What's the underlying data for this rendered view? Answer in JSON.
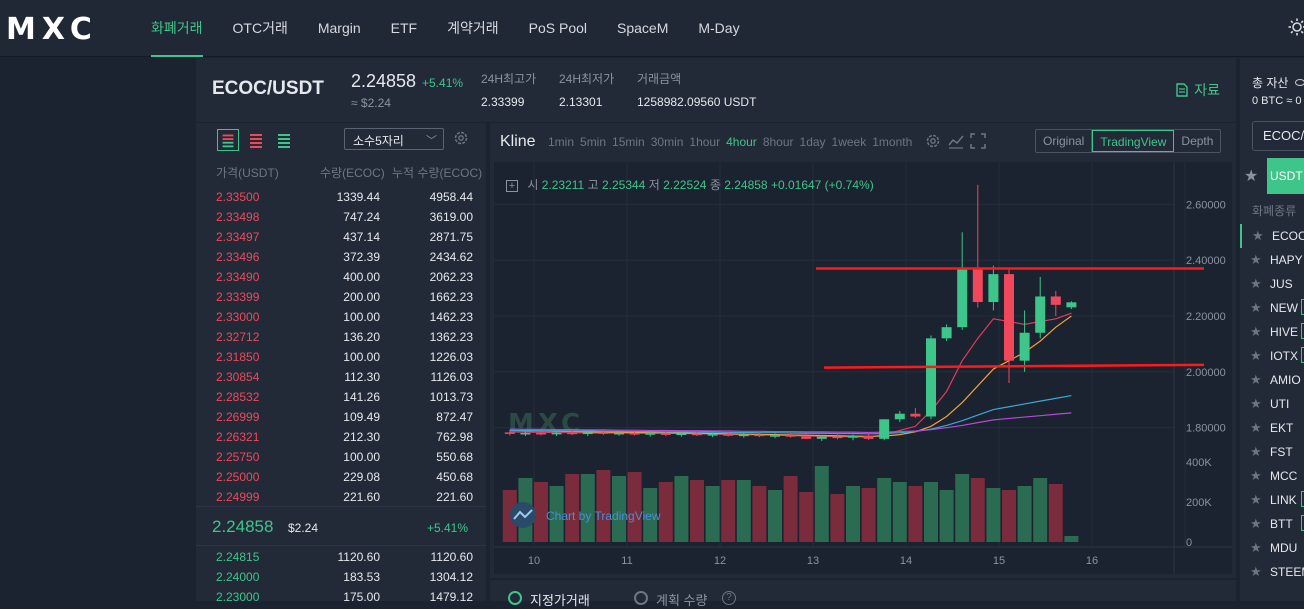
{
  "header": {
    "logo": "MXC",
    "nav": [
      "화폐거래",
      "OTC거래",
      "Margin",
      "ETF",
      "계약거래",
      "PoS Pool",
      "SpaceM",
      "M-Day"
    ]
  },
  "ticker": {
    "pair": "ECOC/USDT",
    "price": "2.24858",
    "change": "+5.41%",
    "usd": "≈ $2.24",
    "stats": [
      {
        "label": "24H최고가",
        "value": "2.33399"
      },
      {
        "label": "24H최저가",
        "value": "2.13301"
      },
      {
        "label": "거래금액",
        "value": "1258982.09560 USDT"
      }
    ],
    "docs_label": "자료"
  },
  "orderbook": {
    "precision": "소수5자리",
    "headers": {
      "price": "가격(USDT)",
      "qty": "수량(ECOC)",
      "cum": "누적 수량(ECOC)"
    },
    "asks": [
      {
        "price": "2.33500",
        "qty": "1339.44",
        "cum": "4958.44"
      },
      {
        "price": "2.33498",
        "qty": "747.24",
        "cum": "3619.00"
      },
      {
        "price": "2.33497",
        "qty": "437.14",
        "cum": "2871.75"
      },
      {
        "price": "2.33496",
        "qty": "372.39",
        "cum": "2434.62"
      },
      {
        "price": "2.33490",
        "qty": "400.00",
        "cum": "2062.23"
      },
      {
        "price": "2.33399",
        "qty": "200.00",
        "cum": "1662.23"
      },
      {
        "price": "2.33000",
        "qty": "100.00",
        "cum": "1462.23"
      },
      {
        "price": "2.32712",
        "qty": "136.20",
        "cum": "1362.23"
      },
      {
        "price": "2.31850",
        "qty": "100.00",
        "cum": "1226.03"
      },
      {
        "price": "2.30854",
        "qty": "112.30",
        "cum": "1126.03"
      },
      {
        "price": "2.28532",
        "qty": "141.26",
        "cum": "1013.73"
      },
      {
        "price": "2.26999",
        "qty": "109.49",
        "cum": "872.47"
      },
      {
        "price": "2.26321",
        "qty": "212.30",
        "cum": "762.98"
      },
      {
        "price": "2.25750",
        "qty": "100.00",
        "cum": "550.68"
      },
      {
        "price": "2.25000",
        "qty": "229.08",
        "cum": "450.68"
      },
      {
        "price": "2.24999",
        "qty": "221.60",
        "cum": "221.60"
      }
    ],
    "mid": {
      "price": "2.24858",
      "usd": "$2.24",
      "change": "+5.41%"
    },
    "bids": [
      {
        "price": "2.24815",
        "qty": "1120.60",
        "cum": "1120.60"
      },
      {
        "price": "2.24000",
        "qty": "183.53",
        "cum": "1304.12"
      },
      {
        "price": "2.23000",
        "qty": "175.00",
        "cum": "1479.12"
      }
    ]
  },
  "kline": {
    "title": "Kline",
    "intervals": [
      "1min",
      "5min",
      "15min",
      "30min",
      "1hour",
      "4hour",
      "8hour",
      "1day",
      "1week",
      "1month"
    ],
    "active_interval": "4hour",
    "views": [
      "Original",
      "TradingView",
      "Depth"
    ],
    "active_view": "TradingView",
    "ohlc": {
      "o_label": "시",
      "o": "2.23211",
      "h_label": "고",
      "h": "2.25344",
      "l_label": "저",
      "l": "2.22524",
      "c_label": "종",
      "c": "2.24858",
      "chg": "+0.01647 (+0.74%)"
    },
    "watermark": "MXC",
    "credit": "Chart by TradingView",
    "bottom_tabs": [
      "지정가거래",
      "계획 수량"
    ]
  },
  "chart_data": {
    "type": "candlestick",
    "x_tick_labels": [
      "10",
      "11",
      "12",
      "13",
      "14",
      "15",
      "16"
    ],
    "y_tick_labels": [
      "2.60000",
      "2.40000",
      "2.20000",
      "2.00000",
      "1.80000"
    ],
    "ylim": [
      1.72,
      2.68
    ],
    "volume_tick_labels": [
      "400K",
      "200K",
      "0"
    ],
    "volume_ylim": [
      0,
      400000
    ],
    "candles": [
      {
        "o": 1.783,
        "h": 1.79,
        "l": 1.772,
        "c": 1.778
      },
      {
        "o": 1.778,
        "h": 1.786,
        "l": 1.77,
        "c": 1.781
      },
      {
        "o": 1.781,
        "h": 1.788,
        "l": 1.772,
        "c": 1.776
      },
      {
        "o": 1.776,
        "h": 1.785,
        "l": 1.77,
        "c": 1.782
      },
      {
        "o": 1.782,
        "h": 1.79,
        "l": 1.773,
        "c": 1.777
      },
      {
        "o": 1.777,
        "h": 1.786,
        "l": 1.77,
        "c": 1.783
      },
      {
        "o": 1.783,
        "h": 1.792,
        "l": 1.774,
        "c": 1.778
      },
      {
        "o": 1.778,
        "h": 1.786,
        "l": 1.771,
        "c": 1.781
      },
      {
        "o": 1.781,
        "h": 1.789,
        "l": 1.772,
        "c": 1.775
      },
      {
        "o": 1.775,
        "h": 1.784,
        "l": 1.768,
        "c": 1.78
      },
      {
        "o": 1.78,
        "h": 1.787,
        "l": 1.77,
        "c": 1.774
      },
      {
        "o": 1.774,
        "h": 1.783,
        "l": 1.768,
        "c": 1.779
      },
      {
        "o": 1.779,
        "h": 1.786,
        "l": 1.77,
        "c": 1.773
      },
      {
        "o": 1.773,
        "h": 1.782,
        "l": 1.766,
        "c": 1.777
      },
      {
        "o": 1.777,
        "h": 1.785,
        "l": 1.768,
        "c": 1.771
      },
      {
        "o": 1.771,
        "h": 1.781,
        "l": 1.764,
        "c": 1.775
      },
      {
        "o": 1.775,
        "h": 1.783,
        "l": 1.766,
        "c": 1.77
      },
      {
        "o": 1.77,
        "h": 1.78,
        "l": 1.762,
        "c": 1.773
      },
      {
        "o": 1.773,
        "h": 1.781,
        "l": 1.764,
        "c": 1.768
      },
      {
        "o": 1.768,
        "h": 1.778,
        "l": 1.76,
        "c": 1.76
      },
      {
        "o": 1.76,
        "h": 1.772,
        "l": 1.752,
        "c": 1.768
      },
      {
        "o": 1.768,
        "h": 1.776,
        "l": 1.758,
        "c": 1.764
      },
      {
        "o": 1.764,
        "h": 1.775,
        "l": 1.755,
        "c": 1.77
      },
      {
        "o": 1.77,
        "h": 1.778,
        "l": 1.756,
        "c": 1.76
      },
      {
        "o": 1.76,
        "h": 1.83,
        "l": 1.755,
        "c": 1.83
      },
      {
        "o": 1.83,
        "h": 1.86,
        "l": 1.82,
        "c": 1.85
      },
      {
        "o": 1.85,
        "h": 1.87,
        "l": 1.835,
        "c": 1.84
      },
      {
        "o": 1.84,
        "h": 2.13,
        "l": 1.83,
        "c": 2.12
      },
      {
        "o": 2.12,
        "h": 2.17,
        "l": 2.11,
        "c": 2.16
      },
      {
        "o": 2.16,
        "h": 2.5,
        "l": 2.15,
        "c": 2.37
      },
      {
        "o": 2.37,
        "h": 2.67,
        "l": 2.23,
        "c": 2.25
      },
      {
        "o": 2.25,
        "h": 2.38,
        "l": 2.22,
        "c": 2.35
      },
      {
        "o": 2.35,
        "h": 2.37,
        "l": 1.96,
        "c": 2.04
      },
      {
        "o": 2.04,
        "h": 2.22,
        "l": 2.0,
        "c": 2.14
      },
      {
        "o": 2.14,
        "h": 2.34,
        "l": 2.12,
        "c": 2.27
      },
      {
        "o": 2.27,
        "h": 2.29,
        "l": 2.2,
        "c": 2.24
      },
      {
        "o": 2.231,
        "h": 2.253,
        "l": 2.225,
        "c": 2.249
      }
    ],
    "volumes": [
      260000,
      320000,
      300000,
      280000,
      340000,
      340000,
      360000,
      330000,
      350000,
      270000,
      300000,
      330000,
      310000,
      280000,
      310000,
      310000,
      280000,
      260000,
      330000,
      250000,
      380000,
      240000,
      280000,
      270000,
      320000,
      300000,
      280000,
      300000,
      260000,
      340000,
      320000,
      270000,
      260000,
      280000,
      320000,
      290000,
      30000
    ],
    "ma_lines": [
      {
        "color": "#e23b5a",
        "values": [
          1.785,
          1.784,
          1.783,
          1.782,
          1.782,
          1.781,
          1.781,
          1.781,
          1.78,
          1.78,
          1.78,
          1.779,
          1.778,
          1.777,
          1.776,
          1.775,
          1.774,
          1.773,
          1.772,
          1.77,
          1.769,
          1.768,
          1.768,
          1.766,
          1.775,
          1.79,
          1.805,
          1.86,
          1.93,
          2.04,
          2.12,
          2.19,
          2.18,
          2.17,
          2.18,
          2.19,
          2.21
        ]
      },
      {
        "color": "#f0a23a",
        "values": [
          1.79,
          1.789,
          1.788,
          1.787,
          1.786,
          1.785,
          1.784,
          1.784,
          1.783,
          1.782,
          1.782,
          1.781,
          1.78,
          1.779,
          1.778,
          1.777,
          1.776,
          1.775,
          1.774,
          1.773,
          1.772,
          1.771,
          1.77,
          1.769,
          1.77,
          1.775,
          1.785,
          1.805,
          1.84,
          1.89,
          1.95,
          2.01,
          2.04,
          2.07,
          2.11,
          2.16,
          2.2
        ]
      },
      {
        "color": "#3aa9d8",
        "values": [
          1.79,
          1.79,
          1.789,
          1.789,
          1.788,
          1.788,
          1.787,
          1.787,
          1.786,
          1.786,
          1.785,
          1.785,
          1.784,
          1.784,
          1.783,
          1.783,
          1.782,
          1.782,
          1.781,
          1.78,
          1.78,
          1.779,
          1.779,
          1.778,
          1.779,
          1.782,
          1.786,
          1.795,
          1.808,
          1.825,
          1.845,
          1.865,
          1.875,
          1.885,
          1.895,
          1.905,
          1.915
        ]
      },
      {
        "color": "#b44ad8",
        "values": [
          1.795,
          1.794,
          1.794,
          1.793,
          1.793,
          1.792,
          1.792,
          1.791,
          1.791,
          1.79,
          1.79,
          1.789,
          1.789,
          1.788,
          1.788,
          1.787,
          1.787,
          1.786,
          1.786,
          1.785,
          1.785,
          1.784,
          1.784,
          1.783,
          1.784,
          1.786,
          1.788,
          1.793,
          1.8,
          1.808,
          1.818,
          1.828,
          1.833,
          1.838,
          1.843,
          1.848,
          1.853
        ]
      }
    ],
    "h_lines": [
      {
        "color": "#ff1a1a",
        "y_start": 2.37,
        "y_end": 2.37
      },
      {
        "color": "#ff1a1a",
        "y_start": 2.015,
        "y_end": 2.025
      }
    ]
  },
  "right": {
    "total_label": "총 자산",
    "btc": "0 BTC ≈ 0",
    "search": "ECOC/USDT",
    "tab": "USDT",
    "list_header": "화폐종류",
    "coins": [
      "ECOC",
      "HAPY",
      "JUS",
      "NEW",
      "HIVE",
      "IOTX",
      "AMIO",
      "UTI",
      "EKT",
      "FST",
      "MCC",
      "LINK",
      "BTT",
      "MDU",
      "STEEM"
    ]
  }
}
